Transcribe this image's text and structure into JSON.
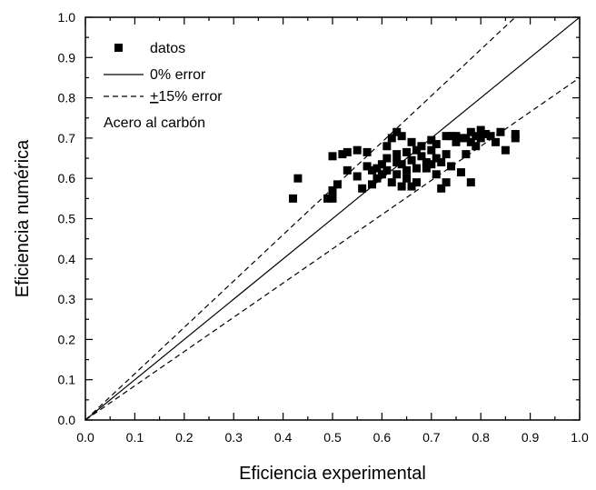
{
  "chart_data": {
    "type": "scatter",
    "xlabel": "Eficiencia experimental",
    "ylabel": "Eficiencia numérica",
    "xlim": [
      0.0,
      1.0
    ],
    "ylim": [
      0.0,
      1.0
    ],
    "xticks": [
      "0.0",
      "0.1",
      "0.2",
      "0.3",
      "0.4",
      "0.5",
      "0.6",
      "0.7",
      "0.8",
      "0.9",
      "1.0"
    ],
    "yticks": [
      "0.0",
      "0.1",
      "0.2",
      "0.3",
      "0.4",
      "0.5",
      "0.6",
      "0.7",
      "0.8",
      "0.9",
      "1.0"
    ],
    "grid": false,
    "legend_position": "top-left",
    "legend": {
      "datos": "datos",
      "zero_error": "0% error",
      "fifteen_error": "+15% error",
      "fifteen_error_symbol": "+",
      "fifteen_error_rest": "15% error",
      "annotation": "Acero al carbón"
    },
    "lines": [
      {
        "label": "0% error",
        "style": "solid",
        "slope": 1.0
      },
      {
        "label": "+15% error",
        "style": "dashed",
        "slope": 1.15
      },
      {
        "label": "+15% error",
        "style": "dashed",
        "slope": 0.85
      }
    ],
    "series": [
      {
        "name": "datos",
        "marker": "square",
        "color": "#000000",
        "points": [
          [
            0.42,
            0.55
          ],
          [
            0.43,
            0.6
          ],
          [
            0.49,
            0.55
          ],
          [
            0.5,
            0.55
          ],
          [
            0.5,
            0.57
          ],
          [
            0.5,
            0.655
          ],
          [
            0.51,
            0.585
          ],
          [
            0.52,
            0.66
          ],
          [
            0.53,
            0.665
          ],
          [
            0.53,
            0.62
          ],
          [
            0.55,
            0.67
          ],
          [
            0.55,
            0.605
          ],
          [
            0.56,
            0.575
          ],
          [
            0.57,
            0.63
          ],
          [
            0.57,
            0.665
          ],
          [
            0.58,
            0.62
          ],
          [
            0.58,
            0.585
          ],
          [
            0.59,
            0.625
          ],
          [
            0.59,
            0.6
          ],
          [
            0.6,
            0.635
          ],
          [
            0.6,
            0.61
          ],
          [
            0.61,
            0.68
          ],
          [
            0.61,
            0.65
          ],
          [
            0.61,
            0.62
          ],
          [
            0.62,
            0.59
          ],
          [
            0.62,
            0.7
          ],
          [
            0.63,
            0.715
          ],
          [
            0.63,
            0.66
          ],
          [
            0.63,
            0.64
          ],
          [
            0.63,
            0.61
          ],
          [
            0.64,
            0.705
          ],
          [
            0.64,
            0.58
          ],
          [
            0.64,
            0.635
          ],
          [
            0.65,
            0.665
          ],
          [
            0.65,
            0.62
          ],
          [
            0.65,
            0.6
          ],
          [
            0.66,
            0.69
          ],
          [
            0.66,
            0.645
          ],
          [
            0.66,
            0.58
          ],
          [
            0.67,
            0.67
          ],
          [
            0.67,
            0.625
          ],
          [
            0.67,
            0.59
          ],
          [
            0.68,
            0.655
          ],
          [
            0.68,
            0.68
          ],
          [
            0.69,
            0.64
          ],
          [
            0.69,
            0.625
          ],
          [
            0.7,
            0.695
          ],
          [
            0.7,
            0.67
          ],
          [
            0.7,
            0.635
          ],
          [
            0.71,
            0.685
          ],
          [
            0.71,
            0.65
          ],
          [
            0.71,
            0.61
          ],
          [
            0.72,
            0.64
          ],
          [
            0.72,
            0.575
          ],
          [
            0.73,
            0.705
          ],
          [
            0.73,
            0.66
          ],
          [
            0.73,
            0.59
          ],
          [
            0.74,
            0.705
          ],
          [
            0.74,
            0.63
          ],
          [
            0.75,
            0.705
          ],
          [
            0.75,
            0.69
          ],
          [
            0.76,
            0.7
          ],
          [
            0.76,
            0.615
          ],
          [
            0.77,
            0.7
          ],
          [
            0.77,
            0.66
          ],
          [
            0.78,
            0.715
          ],
          [
            0.78,
            0.69
          ],
          [
            0.78,
            0.59
          ],
          [
            0.79,
            0.705
          ],
          [
            0.79,
            0.68
          ],
          [
            0.8,
            0.72
          ],
          [
            0.8,
            0.7
          ],
          [
            0.81,
            0.71
          ],
          [
            0.82,
            0.705
          ],
          [
            0.83,
            0.69
          ],
          [
            0.84,
            0.715
          ],
          [
            0.85,
            0.67
          ],
          [
            0.87,
            0.7
          ],
          [
            0.87,
            0.71
          ]
        ]
      }
    ]
  }
}
